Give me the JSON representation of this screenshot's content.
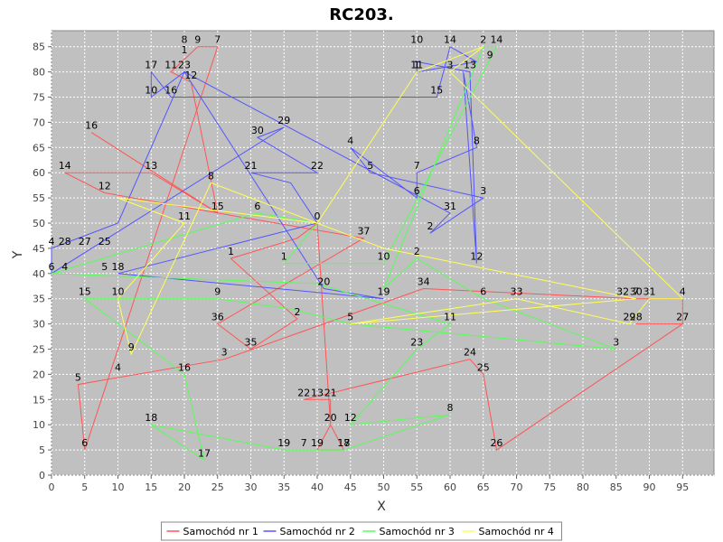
{
  "chart_data": {
    "type": "line",
    "title": "RC203.",
    "xlabel": "X",
    "ylabel": "Y",
    "xlim": [
      0,
      100
    ],
    "ylim": [
      0,
      88
    ],
    "x_ticks": [
      0,
      5,
      10,
      15,
      20,
      25,
      30,
      35,
      40,
      45,
      50,
      55,
      60,
      65,
      70,
      75,
      80,
      85,
      90,
      95
    ],
    "y_ticks": [
      0,
      5,
      10,
      15,
      20,
      25,
      30,
      35,
      40,
      45,
      50,
      55,
      60,
      65,
      70,
      75,
      80,
      85
    ],
    "grid": true,
    "legend": "bottom",
    "series": [
      {
        "name": "Samochód nr 1",
        "color": "#ff5555",
        "points": [
          {
            "x": 40,
            "y": 50,
            "label": "0"
          },
          {
            "x": 37,
            "y": 47,
            "label": ""
          },
          {
            "x": 27,
            "y": 43,
            "label": "1"
          },
          {
            "x": 37,
            "y": 31,
            "label": "2"
          },
          {
            "x": 30,
            "y": 25,
            "label": "35"
          },
          {
            "x": 25,
            "y": 30,
            "label": "36"
          },
          {
            "x": 47,
            "y": 47,
            "label": "37"
          },
          {
            "x": 25,
            "y": 52,
            "label": "15"
          },
          {
            "x": 8,
            "y": 56,
            "label": "12"
          },
          {
            "x": 2,
            "y": 60,
            "label": "14"
          },
          {
            "x": 15,
            "y": 60,
            "label": "13"
          },
          {
            "x": 25,
            "y": 52,
            "label": ""
          },
          {
            "x": 6,
            "y": 68,
            "label": "16"
          },
          {
            "x": 25,
            "y": 52,
            "label": ""
          },
          {
            "x": 21,
            "y": 78,
            "label": "12"
          },
          {
            "x": 18,
            "y": 80,
            "label": "11"
          },
          {
            "x": 22,
            "y": 85,
            "label": "9"
          },
          {
            "x": 25,
            "y": 85,
            "label": "7"
          },
          {
            "x": 5,
            "y": 5,
            "label": "6"
          },
          {
            "x": 4,
            "y": 18,
            "label": "5"
          },
          {
            "x": 26,
            "y": 23,
            "label": "3"
          },
          {
            "x": 56,
            "y": 37,
            "label": "34"
          },
          {
            "x": 88,
            "y": 35,
            "label": "30"
          },
          {
            "x": 95,
            "y": 35,
            "label": ""
          },
          {
            "x": 95,
            "y": 30,
            "label": "27"
          },
          {
            "x": 88,
            "y": 30,
            "label": "28"
          },
          {
            "x": 95,
            "y": 30,
            "label": ""
          },
          {
            "x": 67,
            "y": 5,
            "label": "26"
          },
          {
            "x": 65,
            "y": 20,
            "label": "25"
          },
          {
            "x": 63,
            "y": 23,
            "label": "24"
          },
          {
            "x": 38,
            "y": 15,
            "label": "22"
          },
          {
            "x": 40,
            "y": 15,
            "label": "13"
          },
          {
            "x": 42,
            "y": 15,
            "label": "21"
          },
          {
            "x": 42,
            "y": 10,
            "label": "20"
          },
          {
            "x": 40,
            "y": 5,
            "label": "19"
          },
          {
            "x": 44,
            "y": 5,
            "label": "18"
          },
          {
            "x": 42,
            "y": 10,
            "label": ""
          },
          {
            "x": 40,
            "y": 50,
            "label": ""
          }
        ]
      },
      {
        "name": "Samochód nr 2",
        "color": "#5555ff",
        "points": [
          {
            "x": 40,
            "y": 50,
            "label": ""
          },
          {
            "x": 36,
            "y": 58,
            "label": ""
          },
          {
            "x": 30,
            "y": 60,
            "label": "21"
          },
          {
            "x": 40,
            "y": 60,
            "label": "22"
          },
          {
            "x": 31,
            "y": 67,
            "label": "30"
          },
          {
            "x": 35,
            "y": 69,
            "label": "29"
          },
          {
            "x": 0,
            "y": 40,
            "label": "6"
          },
          {
            "x": 0,
            "y": 45,
            "label": "4"
          },
          {
            "x": 10,
            "y": 50,
            "label": ""
          },
          {
            "x": 20,
            "y": 80,
            "label": "23"
          },
          {
            "x": 15,
            "y": 75,
            "label": "10"
          },
          {
            "x": 15,
            "y": 80,
            "label": "17"
          },
          {
            "x": 18,
            "y": 75,
            "label": "16"
          },
          {
            "x": 58,
            "y": 75,
            "label": "15"
          },
          {
            "x": 60,
            "y": 85,
            "label": "14"
          },
          {
            "x": 64,
            "y": 82,
            "label": ""
          },
          {
            "x": 55,
            "y": 80,
            "label": "11"
          },
          {
            "x": 55,
            "y": 82,
            "label": ""
          },
          {
            "x": 63,
            "y": 80,
            "label": "13"
          },
          {
            "x": 64,
            "y": 42,
            "label": "12"
          },
          {
            "x": 62,
            "y": 80,
            "label": ""
          },
          {
            "x": 64,
            "y": 65,
            "label": "8"
          },
          {
            "x": 55,
            "y": 60,
            "label": "7"
          },
          {
            "x": 55,
            "y": 55,
            "label": "6"
          },
          {
            "x": 45,
            "y": 65,
            "label": "4"
          },
          {
            "x": 48,
            "y": 60,
            "label": "5"
          },
          {
            "x": 65,
            "y": 55,
            "label": "3"
          },
          {
            "x": 57,
            "y": 48,
            "label": "2"
          },
          {
            "x": 60,
            "y": 52,
            "label": "31"
          },
          {
            "x": 20,
            "y": 80,
            "label": ""
          },
          {
            "x": 41,
            "y": 37,
            "label": "20"
          },
          {
            "x": 50,
            "y": 35,
            "label": "19"
          },
          {
            "x": 10,
            "y": 40,
            "label": "18"
          },
          {
            "x": 10,
            "y": 40,
            "label": ""
          },
          {
            "x": 40,
            "y": 50,
            "label": ""
          }
        ]
      },
      {
        "name": "Samochód nr 3",
        "color": "#55ff55",
        "points": [
          {
            "x": 40,
            "y": 50,
            "label": ""
          },
          {
            "x": 35,
            "y": 42,
            "label": "1"
          },
          {
            "x": 50,
            "y": 42,
            "label": "10"
          },
          {
            "x": 67,
            "y": 85,
            "label": "14"
          },
          {
            "x": 65,
            "y": 85,
            "label": "2"
          },
          {
            "x": 50,
            "y": 37,
            "label": ""
          },
          {
            "x": 55,
            "y": 43,
            "label": "2"
          },
          {
            "x": 65,
            "y": 35,
            "label": "6"
          },
          {
            "x": 85,
            "y": 25,
            "label": "3"
          },
          {
            "x": 45,
            "y": 30,
            "label": "5"
          },
          {
            "x": 36,
            "y": 33,
            "label": ""
          },
          {
            "x": 25,
            "y": 35,
            "label": "9"
          },
          {
            "x": 5,
            "y": 35,
            "label": "15"
          },
          {
            "x": 20,
            "y": 20,
            "label": "16"
          },
          {
            "x": 23,
            "y": 3,
            "label": "17"
          },
          {
            "x": 15,
            "y": 10,
            "label": "18"
          },
          {
            "x": 35,
            "y": 5,
            "label": "19"
          },
          {
            "x": 38,
            "y": 5,
            "label": "7"
          },
          {
            "x": 44,
            "y": 5,
            "label": "17"
          },
          {
            "x": 60,
            "y": 12,
            "label": "8"
          },
          {
            "x": 45,
            "y": 10,
            "label": "12"
          },
          {
            "x": 55,
            "y": 25,
            "label": "23"
          },
          {
            "x": 60,
            "y": 30,
            "label": "11"
          },
          {
            "x": 40,
            "y": 38,
            "label": ""
          },
          {
            "x": 0,
            "y": 40,
            "label": ""
          },
          {
            "x": 31,
            "y": 52,
            "label": "6"
          },
          {
            "x": 40,
            "y": 50,
            "label": ""
          }
        ]
      },
      {
        "name": "Samochód nr 4",
        "color": "#ffff55",
        "points": [
          {
            "x": 40,
            "y": 50,
            "label": ""
          },
          {
            "x": 55,
            "y": 80,
            "label": "1"
          },
          {
            "x": 65,
            "y": 85,
            "label": ""
          },
          {
            "x": 60,
            "y": 80,
            "label": "3"
          },
          {
            "x": 95,
            "y": 35,
            "label": "4"
          },
          {
            "x": 90,
            "y": 35,
            "label": "31"
          },
          {
            "x": 87,
            "y": 30,
            "label": "29"
          },
          {
            "x": 70,
            "y": 35,
            "label": "33"
          },
          {
            "x": 45,
            "y": 30,
            "label": ""
          },
          {
            "x": 88,
            "y": 35,
            "label": "7"
          },
          {
            "x": 50,
            "y": 45,
            "label": ""
          },
          {
            "x": 24,
            "y": 58,
            "label": "8"
          },
          {
            "x": 12,
            "y": 24,
            "label": "9"
          },
          {
            "x": 10,
            "y": 35,
            "label": "10"
          },
          {
            "x": 20,
            "y": 50,
            "label": "11"
          },
          {
            "x": 10,
            "y": 55,
            "label": ""
          },
          {
            "x": 40,
            "y": 50,
            "label": ""
          }
        ]
      }
    ],
    "extra_labels": [
      {
        "x": 20,
        "y": 85,
        "text": "8"
      },
      {
        "x": 20,
        "y": 83,
        "text": "1"
      },
      {
        "x": 55,
        "y": 85,
        "text": "10"
      },
      {
        "x": 55,
        "y": 80,
        "text": "1"
      },
      {
        "x": 66,
        "y": 82,
        "text": "9"
      },
      {
        "x": 2,
        "y": 45,
        "text": "28"
      },
      {
        "x": 5,
        "y": 45,
        "text": "27"
      },
      {
        "x": 8,
        "y": 45,
        "text": "25"
      },
      {
        "x": 2,
        "y": 40,
        "text": "4"
      },
      {
        "x": 8,
        "y": 40,
        "text": "5"
      },
      {
        "x": 10,
        "y": 20,
        "text": "4"
      },
      {
        "x": 33,
        "y": 30,
        "text": ""
      },
      {
        "x": 86,
        "y": 35,
        "text": "32"
      },
      {
        "x": 93,
        "y": 30,
        "text": ""
      }
    ]
  },
  "legend_items": [
    {
      "name": "Samochód nr 1",
      "color": "#ff5555"
    },
    {
      "name": "Samochód nr 2",
      "color": "#5555ff"
    },
    {
      "name": "Samochód nr 3",
      "color": "#55ff55"
    },
    {
      "name": "Samochód nr 4",
      "color": "#ffff55"
    }
  ]
}
